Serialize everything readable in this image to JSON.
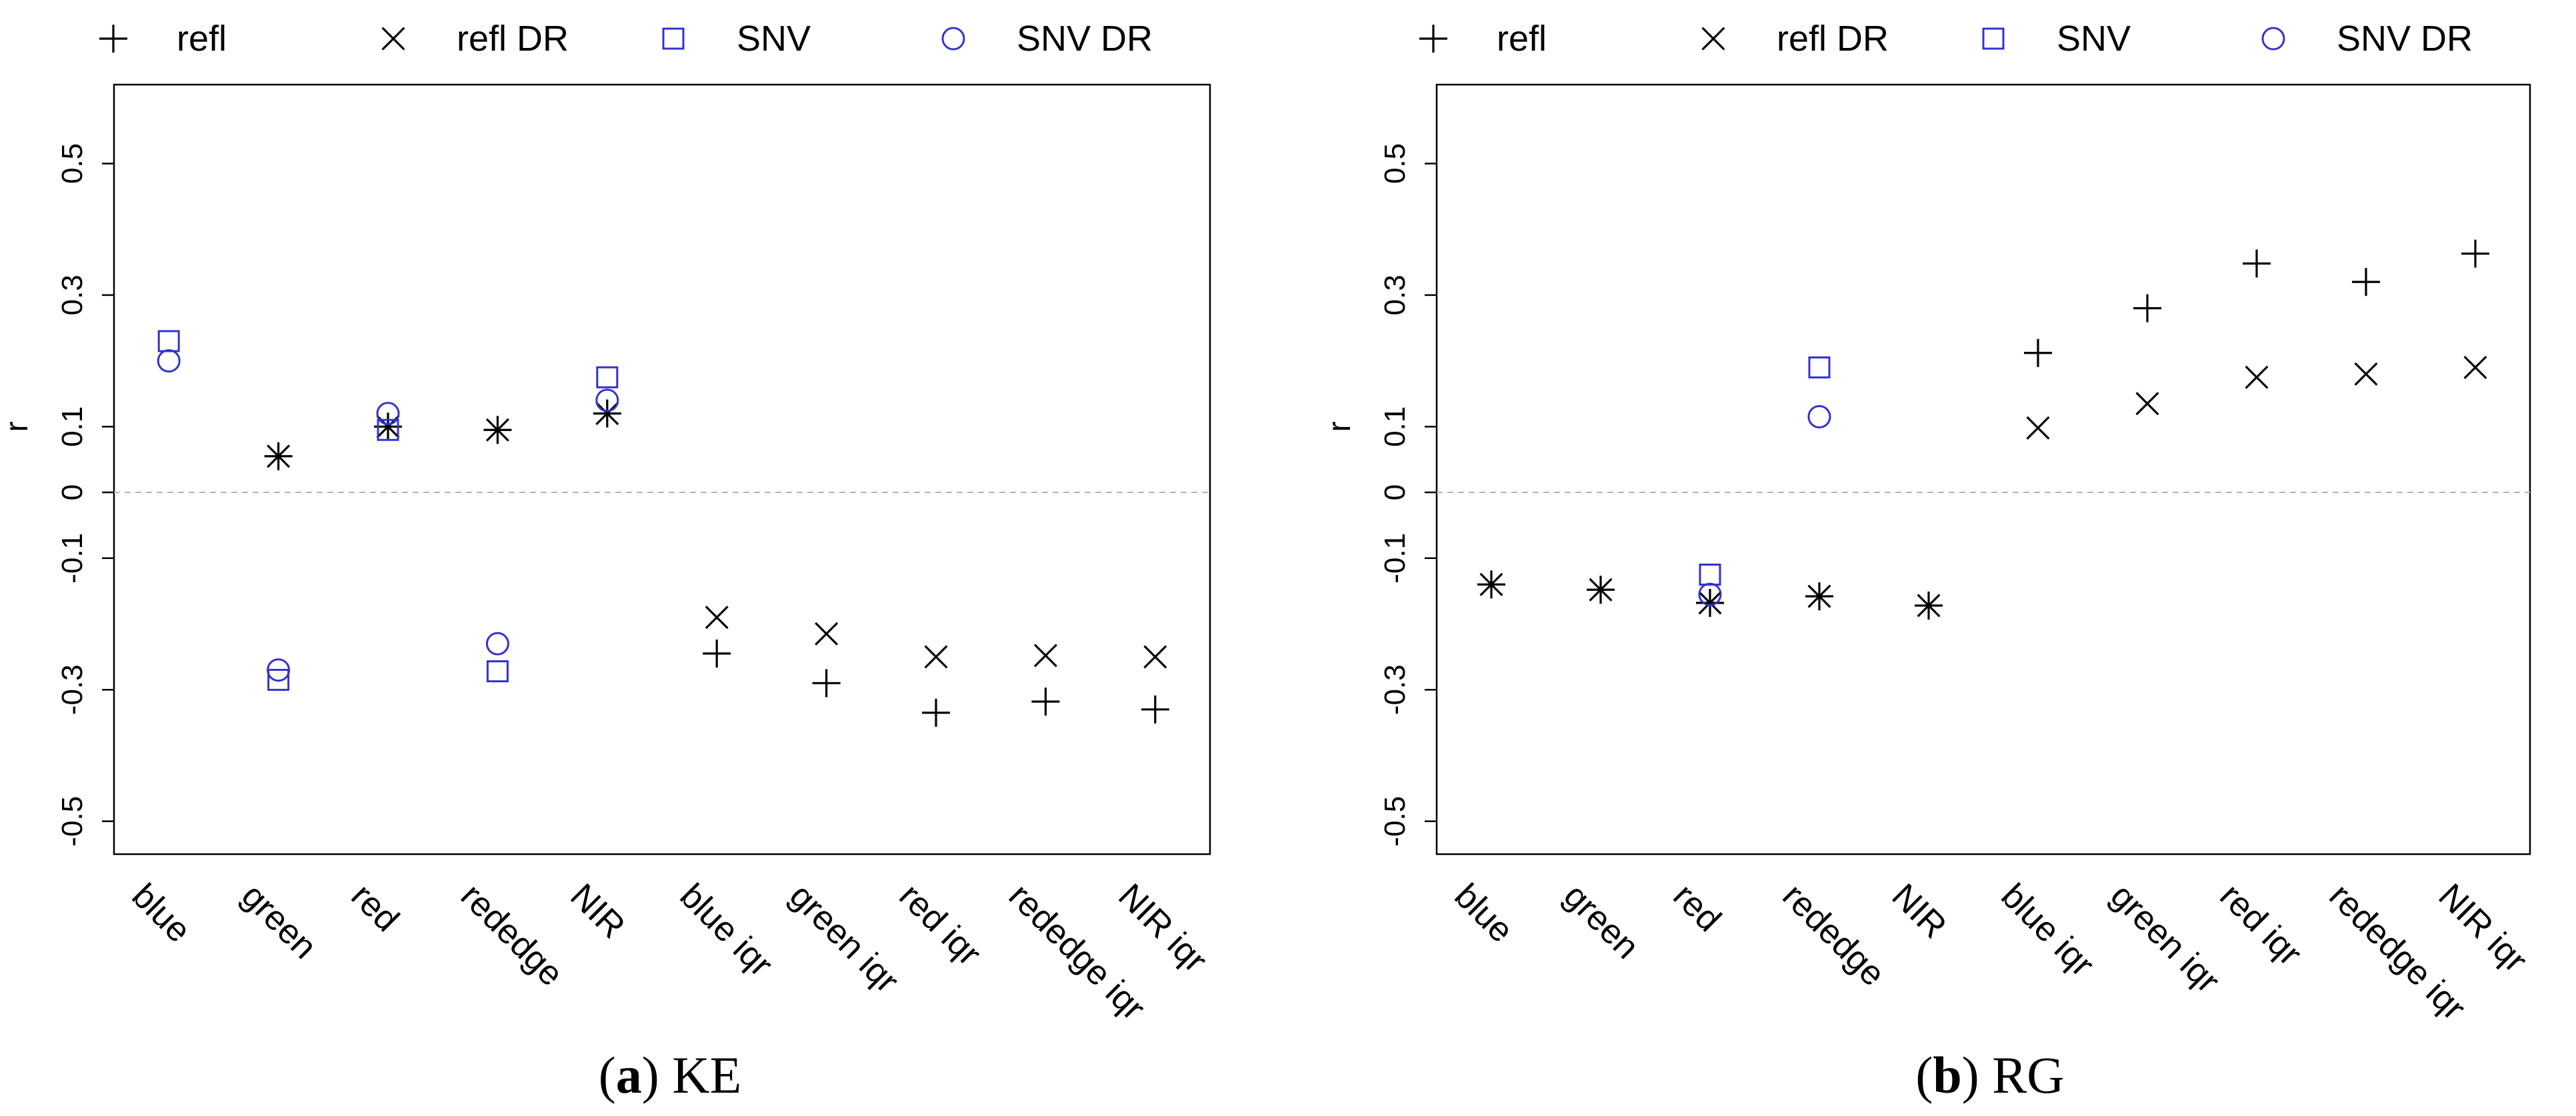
{
  "chart_data": [
    {
      "type": "scatter",
      "panel_letter": "a",
      "panel_name": "KE",
      "ylabel": "r",
      "xlabel": "",
      "ylim": [
        -0.55,
        0.62
      ],
      "yticks": [
        "-0.5",
        "-0.3",
        "-0.1",
        "0",
        "0.1",
        "0.3",
        "0.5"
      ],
      "categories": [
        "blue",
        "green",
        "red",
        "rededge",
        "NIR",
        "blue iqr",
        "green iqr",
        "red iqr",
        "rededge iqr",
        "NIR iqr"
      ],
      "reference_line": 0,
      "legend": {
        "placement": "top",
        "entries": [
          "refl",
          "refl DR",
          "SNV",
          "SNV DR"
        ]
      },
      "series": [
        {
          "name": "refl",
          "marker": "plus",
          "color": "#000000",
          "values": [
            null,
            0.055,
            0.1,
            0.095,
            0.12,
            -0.245,
            -0.29,
            -0.335,
            -0.318,
            -0.33
          ]
        },
        {
          "name": "refl DR",
          "marker": "x",
          "color": "#000000",
          "values": [
            null,
            0.055,
            0.1,
            0.095,
            0.12,
            -0.19,
            -0.215,
            -0.25,
            -0.248,
            -0.25
          ]
        },
        {
          "name": "SNV",
          "marker": "square",
          "color": "#3333cc",
          "values": [
            0.23,
            -0.285,
            0.095,
            null,
            0.175,
            null,
            null,
            null,
            null,
            null
          ]
        },
        {
          "name": "SNV DR",
          "marker": "circle",
          "color": "#3333cc",
          "values": [
            0.2,
            -0.27,
            0.12,
            -0.23,
            0.14,
            null,
            null,
            null,
            null,
            null
          ]
        }
      ],
      "extra_points": [
        {
          "series": "SNV",
          "category": "rededge",
          "value": -0.272
        }
      ]
    },
    {
      "type": "scatter",
      "panel_letter": "b",
      "panel_name": "RG",
      "ylabel": "r",
      "xlabel": "",
      "ylim": [
        -0.55,
        0.62
      ],
      "yticks": [
        "-0.5",
        "-0.3",
        "-0.1",
        "0",
        "0.1",
        "0.3",
        "0.5"
      ],
      "categories": [
        "blue",
        "green",
        "red",
        "rededge",
        "NIR",
        "blue iqr",
        "green iqr",
        "red iqr",
        "rededge iqr",
        "NIR iqr"
      ],
      "reference_line": 0,
      "legend": {
        "placement": "top",
        "entries": [
          "refl",
          "refl DR",
          "SNV",
          "SNV DR"
        ]
      },
      "series": [
        {
          "name": "refl",
          "marker": "plus",
          "color": "#000000",
          "values": [
            -0.14,
            -0.148,
            -0.168,
            -0.158,
            -0.172,
            0.212,
            0.28,
            0.348,
            0.32,
            0.363
          ]
        },
        {
          "name": "refl DR",
          "marker": "x",
          "color": "#000000",
          "values": [
            -0.14,
            -0.148,
            -0.168,
            -0.158,
            -0.172,
            0.098,
            0.135,
            0.175,
            0.18,
            0.19
          ]
        },
        {
          "name": "SNV",
          "marker": "square",
          "color": "#3333cc",
          "values": [
            null,
            null,
            -0.125,
            0.19,
            null,
            null,
            null,
            null,
            null,
            null
          ]
        },
        {
          "name": "SNV DR",
          "marker": "circle",
          "color": "#3333cc",
          "values": [
            null,
            null,
            -0.155,
            0.115,
            null,
            null,
            null,
            null,
            null,
            null
          ]
        }
      ]
    }
  ]
}
